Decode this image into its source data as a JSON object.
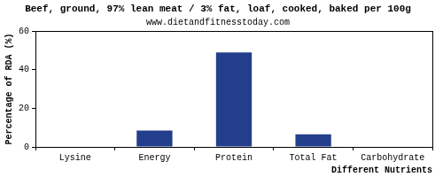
{
  "chart_data": {
    "type": "bar",
    "title": "Beef, ground, 97% lean meat / 3% fat, loaf, cooked, baked per 100g",
    "subtitle": "www.dietandfitnesstoday.com",
    "x_label": "Different Nutrients",
    "y_label": "Percentage of RDA (%)",
    "categories": [
      "Lysine",
      "Energy",
      "Protein",
      "Total Fat",
      "Carbohydrate"
    ],
    "values": [
      0,
      8.5,
      49,
      6.5,
      0
    ],
    "color": "#233e8b",
    "ylim": [
      0,
      60
    ],
    "yticks": [
      0,
      20,
      40,
      60
    ],
    "grid": false
  }
}
